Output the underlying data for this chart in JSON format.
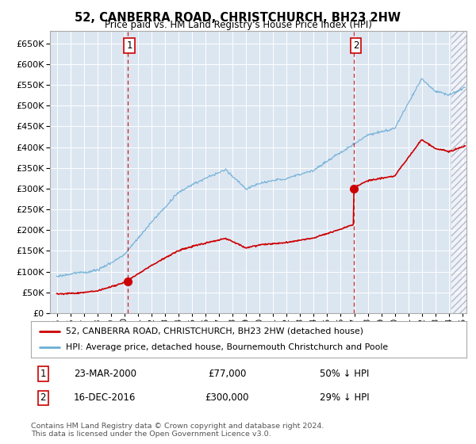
{
  "title": "52, CANBERRA ROAD, CHRISTCHURCH, BH23 2HW",
  "subtitle": "Price paid vs. HM Land Registry's House Price Index (HPI)",
  "ylim": [
    0,
    680000
  ],
  "yticks": [
    0,
    50000,
    100000,
    150000,
    200000,
    250000,
    300000,
    350000,
    400000,
    450000,
    500000,
    550000,
    600000,
    650000
  ],
  "xlim_start": 1994.5,
  "xlim_end": 2025.3,
  "sale1_x": 2000.22,
  "sale1_y": 77000,
  "sale1_label": "1",
  "sale1_date": "23-MAR-2000",
  "sale1_price": "£77,000",
  "sale1_hpi": "50% ↓ HPI",
  "sale2_x": 2016.96,
  "sale2_y": 300000,
  "sale2_label": "2",
  "sale2_date": "16-DEC-2016",
  "sale2_price": "£300,000",
  "sale2_hpi": "29% ↓ HPI",
  "legend_line1": "52, CANBERRA ROAD, CHRISTCHURCH, BH23 2HW (detached house)",
  "legend_line2": "HPI: Average price, detached house, Bournemouth Christchurch and Poole",
  "footer1": "Contains HM Land Registry data © Crown copyright and database right 2024.",
  "footer2": "This data is licensed under the Open Government Licence v3.0.",
  "sold_color": "#cc0000",
  "hpi_color": "#6baed6",
  "bg_color": "#dce6f1",
  "dashed_line_color": "#cc0000",
  "box_color": "#cc0000",
  "hatch_start": 2024.17
}
